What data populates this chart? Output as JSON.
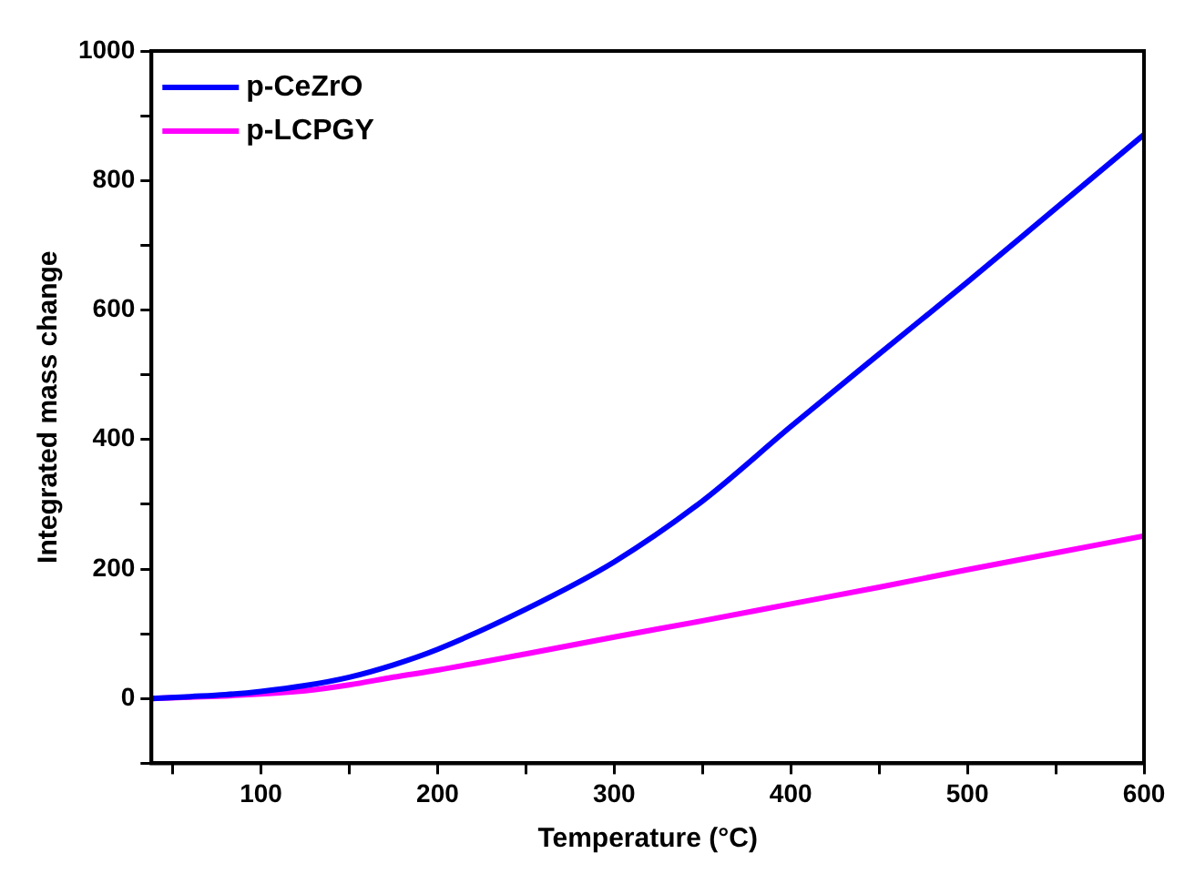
{
  "chart_data": {
    "type": "line",
    "xlabel": "Temperature (°C)",
    "ylabel": "Integrated mass change",
    "x": [
      38,
      60,
      80,
      100,
      125,
      150,
      175,
      200,
      250,
      300,
      350,
      400,
      450,
      500,
      550,
      600
    ],
    "series": [
      {
        "name": "p-CeZrO",
        "color": "#0000ff",
        "values": [
          0,
          3,
          6,
          11,
          20,
          33,
          52,
          76,
          138,
          211,
          305,
          420,
          532,
          643,
          757,
          871
        ]
      },
      {
        "name": "p-LCPGY",
        "color": "#ff00ff",
        "values": [
          0,
          2,
          4,
          7,
          12,
          21,
          33,
          44,
          69,
          95,
          120,
          146,
          172,
          199,
          225,
          251
        ]
      }
    ],
    "xlim": [
      38,
      600
    ],
    "ylim": [
      -100,
      1000
    ],
    "xticks": [
      {
        "value": 50,
        "label": null
      },
      100,
      {
        "value": 150,
        "label": null
      },
      200,
      {
        "value": 250,
        "label": null
      },
      300,
      {
        "value": 350,
        "label": null
      },
      400,
      {
        "value": 450,
        "label": null
      },
      500,
      {
        "value": 550,
        "label": null
      },
      600
    ],
    "yticks": [
      {
        "value": -100,
        "label": null
      },
      0,
      {
        "value": 100,
        "label": null
      },
      200,
      {
        "value": 300,
        "label": null
      },
      400,
      {
        "value": 500,
        "label": null
      },
      600,
      {
        "value": 700,
        "label": null
      },
      800,
      {
        "value": 900,
        "label": null
      },
      1000
    ],
    "legend": "top left",
    "grid": false,
    "marker": "none",
    "line_style": "solid"
  }
}
